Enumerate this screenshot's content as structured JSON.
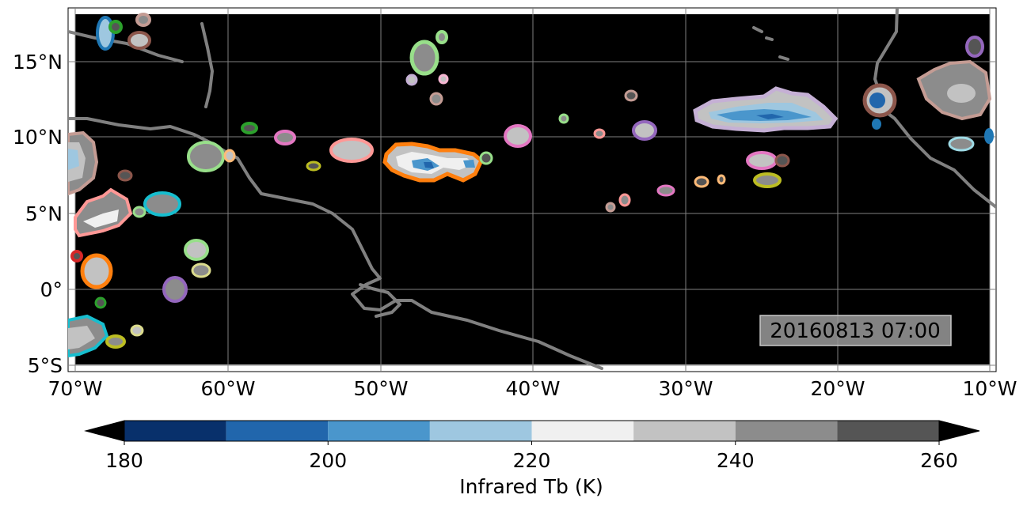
{
  "map": {
    "lon_labels": [
      "70°W",
      "60°W",
      "50°W",
      "40°W",
      "30°W",
      "20°W",
      "10°W"
    ],
    "lat_labels": [
      "15°N",
      "10°N",
      "5°N",
      "0°",
      "5°S"
    ],
    "timestamp": "20160813 07:00",
    "background_color": "#000000",
    "coastline_color": "#808080",
    "gridline_color": "#808080"
  },
  "colorbar": {
    "label": "Infrared Tb (K)",
    "tick_labels": [
      "180",
      "200",
      "220",
      "240",
      "260"
    ],
    "levels": [
      180,
      190,
      200,
      210,
      220,
      230,
      240,
      250,
      260
    ],
    "colors": [
      "#08306b",
      "#2166ac",
      "#4a96cc",
      "#9ec7e0",
      "#f0f0f0",
      "#c2c2c2",
      "#8c8c8c",
      "#555555"
    ],
    "extend": "both"
  },
  "chart_data": {
    "type": "heatmap",
    "variable": "Infrared brightness temperature",
    "units": "K",
    "xlim_lon": [
      -70,
      -10
    ],
    "ylim_lat": [
      -5,
      18
    ],
    "x_ticks": [
      -70,
      -60,
      -50,
      -40,
      -30,
      -20,
      -10
    ],
    "y_ticks": [
      15,
      10,
      5,
      0,
      -5
    ],
    "color_range": [
      180,
      260
    ],
    "contour_outline_colors": [
      "#1f77b4",
      "#ff7f0e",
      "#2ca02c",
      "#d62728",
      "#9467bd",
      "#8c564b",
      "#e377c2",
      "#7f7f7f",
      "#bcbd22",
      "#17becf",
      "#aec7e8",
      "#ffbb78",
      "#98df8a",
      "#ff9896",
      "#c5b0d5",
      "#c49c94",
      "#f7b6d2",
      "#dbdb8d",
      "#9edae5"
    ],
    "timestamp": "20160813 07:00"
  }
}
